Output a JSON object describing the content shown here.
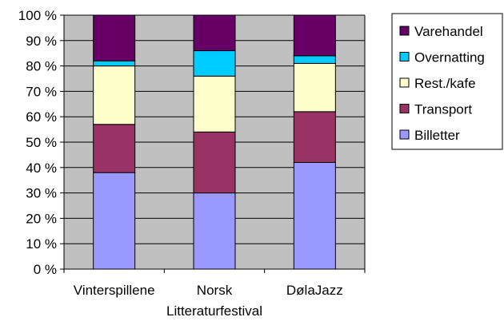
{
  "chart_data": {
    "type": "bar",
    "stacked": true,
    "percent": true,
    "categories": [
      "Vinterspillene",
      "Norsk Litteraturfestival",
      "DølaJazz"
    ],
    "category_label_lines": [
      [
        "Vinterspillene"
      ],
      [
        "Norsk",
        "Litteraturfestival"
      ],
      [
        "DølaJazz"
      ]
    ],
    "series": [
      {
        "name": "Billetter",
        "color": "#9999ff",
        "values": [
          38,
          30,
          42
        ]
      },
      {
        "name": "Transport",
        "color": "#993366",
        "values": [
          19,
          24,
          20
        ]
      },
      {
        "name": "Rest./kafe",
        "color": "#ffffcc",
        "values": [
          23,
          22,
          19
        ]
      },
      {
        "name": "Overnatting",
        "color": "#00ccff",
        "values": [
          2,
          10,
          3
        ]
      },
      {
        "name": "Varehandel",
        "color": "#660066",
        "values": [
          18,
          14,
          16
        ]
      }
    ],
    "legend_order": [
      "Varehandel",
      "Overnatting",
      "Rest./kafe",
      "Transport",
      "Billetter"
    ],
    "ylim": [
      0,
      100
    ],
    "ytick_values": [
      0,
      10,
      20,
      30,
      40,
      50,
      60,
      70,
      80,
      90,
      100
    ],
    "ytick_labels": [
      "0 %",
      "10 %",
      "20 %",
      "30 %",
      "40 %",
      "50 %",
      "60 %",
      "70 %",
      "80 %",
      "90 %",
      "100 %"
    ],
    "grid": true,
    "plot_background": "#c0c0c0",
    "legend_position": "right",
    "title": "",
    "xlabel": "",
    "ylabel": ""
  }
}
